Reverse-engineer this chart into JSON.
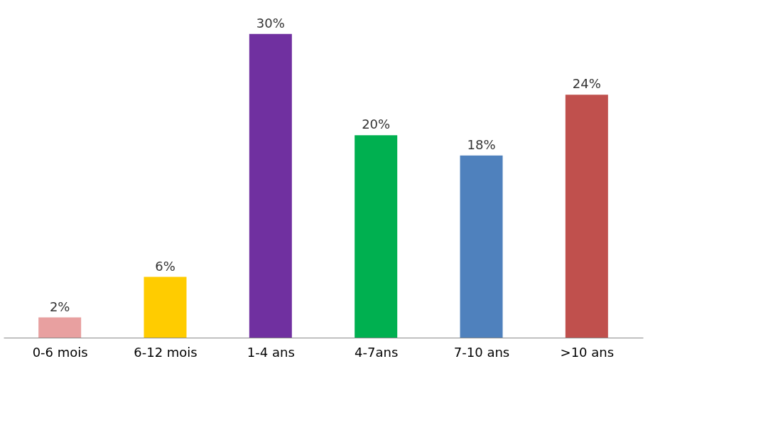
{
  "chart_data": {
    "type": "bar",
    "categories": [
      "0-6 mois",
      "6-12 mois",
      "1-4 ans",
      "4-7ans",
      "7-10 ans",
      ">10 ans"
    ],
    "values": [
      2,
      6,
      30,
      20,
      18,
      24
    ],
    "colors": [
      "#e8a0a0",
      "#ffcc00",
      "#7030a0",
      "#00b050",
      "#4f81bd",
      "#c0504d"
    ],
    "value_labels": [
      "2%",
      "6%",
      "30%",
      "20%",
      "18%",
      "24%"
    ],
    "grid": false
  }
}
